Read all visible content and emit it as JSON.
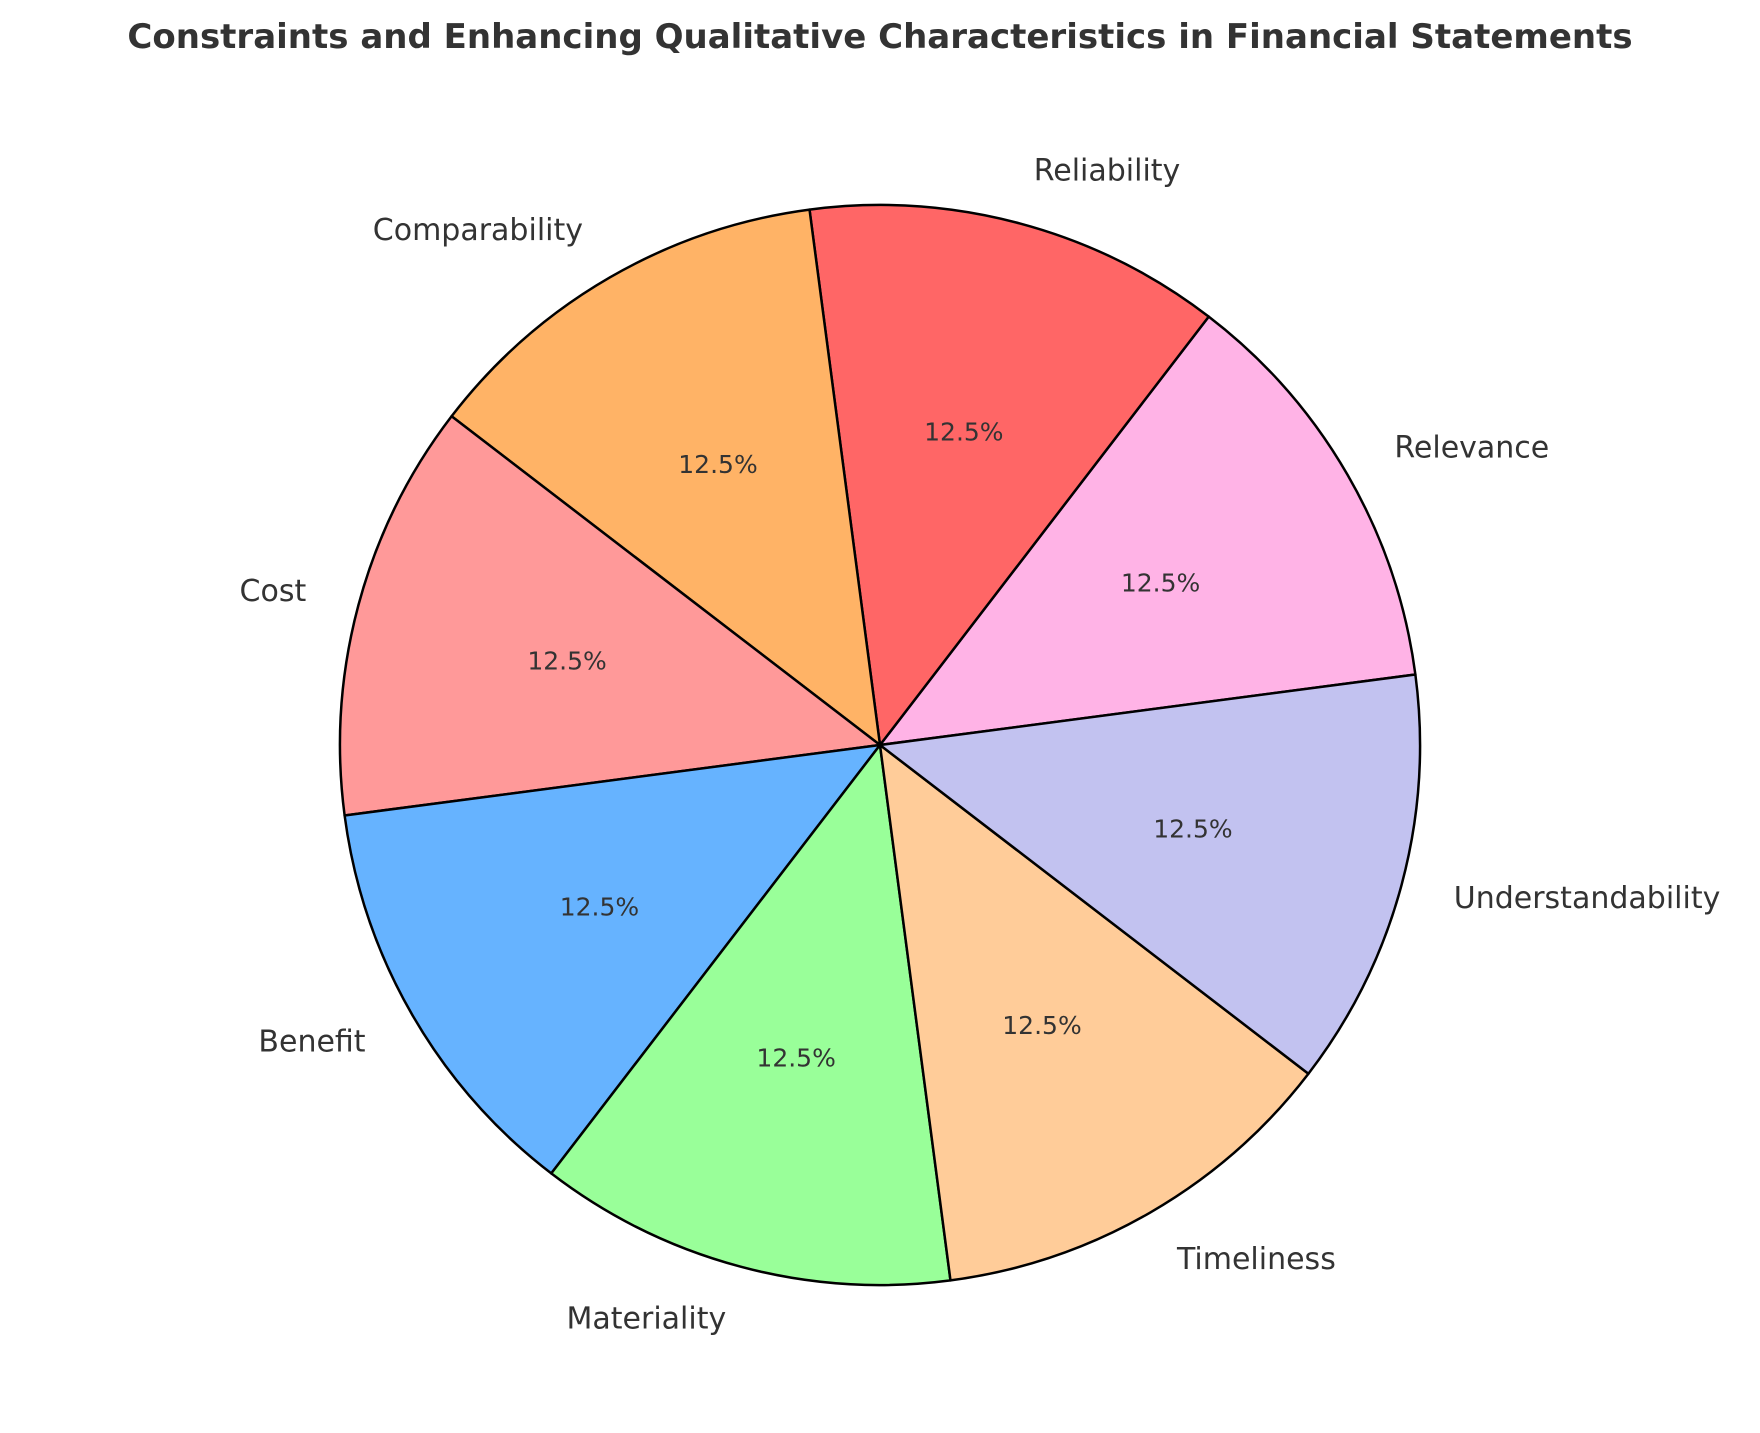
{
  "chart_data": {
    "type": "pie",
    "title": "Constraints and Enhancing Qualitative Characteristics in Financial Statements",
    "categories": [
      "Relevance",
      "Reliability",
      "Comparability",
      "Cost",
      "Benefit",
      "Materiality",
      "Timeliness",
      "Understandability"
    ],
    "values": [
      12.5,
      12.5,
      12.5,
      12.5,
      12.5,
      12.5,
      12.5,
      12.5
    ],
    "value_labels": [
      "12.5%",
      "12.5%",
      "12.5%",
      "12.5%",
      "12.5%",
      "12.5%",
      "12.5%",
      "12.5%"
    ],
    "colors": [
      "#FFB3E6",
      "#FF6666",
      "#FFB366",
      "#FF9999",
      "#66B3FF",
      "#99FF99",
      "#FFCC99",
      "#C2C2F0"
    ],
    "edge_color": "#000000",
    "start_angle_deg": 7.5,
    "direction": "counterclockwise",
    "legend": "none"
  }
}
